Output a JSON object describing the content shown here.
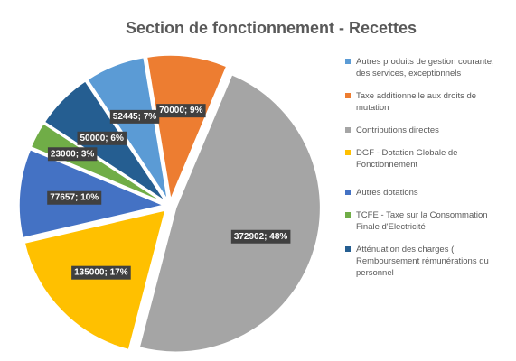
{
  "chart_data": {
    "type": "pie",
    "title": "Section de fonctionnement - Recettes",
    "categories": [
      "Autres produits de gestion courante, des services, exceptionnels",
      "Taxe additionnelle aux droits de mutation",
      "Contributions directes",
      "DGF - Dotation Globale de Fonctionnement",
      "Autres dotations",
      "TCFE - Taxe sur la Consommation Finale d'Electricité",
      "Atténuation des charges ( Remboursement rémunérations du personnel"
    ],
    "values": [
      52445,
      70000,
      372902,
      135000,
      77657,
      23000,
      50000
    ],
    "value_labels": [
      "52445; 7%",
      "70000; 9%",
      "372902; 48%",
      "135000; 17%",
      "77657; 10%",
      "23000; 3%",
      "50000; 6%"
    ],
    "colors": [
      "#5b9bd5",
      "#ed7d31",
      "#a5a5a5",
      "#ffc000",
      "#4472c4",
      "#70ad47",
      "#255e91"
    ],
    "legend": "right"
  }
}
